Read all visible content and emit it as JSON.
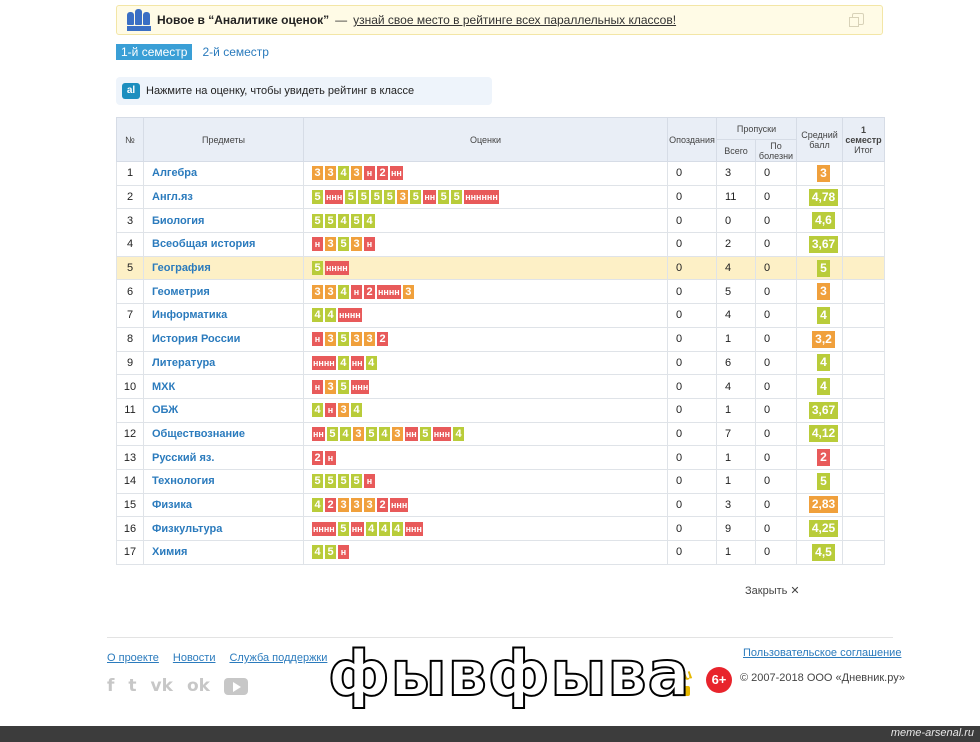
{
  "banner": {
    "title": "Новое в “Аналитике оценок”",
    "dash": "—",
    "link": "узнай свое место в рейтинге всех параллельных классов!"
  },
  "tabs": [
    "1-й семестр",
    "2-й семестр"
  ],
  "hint": {
    "badge": "al",
    "text": "Нажмите на оценку, чтобы увидеть рейтинг в классе"
  },
  "table": {
    "headers": {
      "num": "№",
      "subject": "Предметы",
      "grades": "Оценки",
      "late": "Опоздания",
      "absences": "Пропуски",
      "total": "Всего",
      "sick": "По болезни",
      "avg": "Средний балл",
      "final_top": "1 семестр",
      "final_bottom": "Итог"
    },
    "rows": [
      {
        "n": "1",
        "subject": "Алгебра",
        "marks": [
          "3",
          "3",
          "4",
          "3",
          "н",
          "2",
          "нн"
        ],
        "late": "0",
        "total": "3",
        "sick": "0",
        "avg": "3"
      },
      {
        "n": "2",
        "subject": "Англ.яз",
        "marks": [
          "5",
          "ннн",
          "5",
          "5",
          "5",
          "5",
          "3",
          "5",
          "нн",
          "5",
          "5",
          "нннннн"
        ],
        "late": "0",
        "total": "11",
        "sick": "0",
        "avg": "4,78"
      },
      {
        "n": "3",
        "subject": "Биология",
        "marks": [
          "5",
          "5",
          "4",
          "5",
          "4"
        ],
        "late": "0",
        "total": "0",
        "sick": "0",
        "avg": "4,6"
      },
      {
        "n": "4",
        "subject": "Всеобщая история",
        "marks": [
          "н",
          "3",
          "5",
          "3",
          "н"
        ],
        "late": "0",
        "total": "2",
        "sick": "0",
        "avg": "3,67"
      },
      {
        "n": "5",
        "subject": "География",
        "marks": [
          "5",
          "нннн"
        ],
        "late": "0",
        "total": "4",
        "sick": "0",
        "avg": "5"
      },
      {
        "n": "6",
        "subject": "Геометрия",
        "marks": [
          "3",
          "3",
          "4",
          "н",
          "2",
          "нннн",
          "3"
        ],
        "late": "0",
        "total": "5",
        "sick": "0",
        "avg": "3"
      },
      {
        "n": "7",
        "subject": "Информатика",
        "marks": [
          "4",
          "4",
          "нннн"
        ],
        "late": "0",
        "total": "4",
        "sick": "0",
        "avg": "4"
      },
      {
        "n": "8",
        "subject": "История России",
        "marks": [
          "н",
          "3",
          "5",
          "3",
          "3",
          "2"
        ],
        "late": "0",
        "total": "1",
        "sick": "0",
        "avg": "3,2"
      },
      {
        "n": "9",
        "subject": "Литература",
        "marks": [
          "нннн",
          "4",
          "нн",
          "4"
        ],
        "late": "0",
        "total": "6",
        "sick": "0",
        "avg": "4"
      },
      {
        "n": "10",
        "subject": "МХК",
        "marks": [
          "н",
          "3",
          "5",
          "ннн"
        ],
        "late": "0",
        "total": "4",
        "sick": "0",
        "avg": "4"
      },
      {
        "n": "11",
        "subject": "ОБЖ",
        "marks": [
          "4",
          "н",
          "3",
          "4"
        ],
        "late": "0",
        "total": "1",
        "sick": "0",
        "avg": "3,67"
      },
      {
        "n": "12",
        "subject": "Обществознание",
        "marks": [
          "нн",
          "5",
          "4",
          "3",
          "5",
          "4",
          "3",
          "нн",
          "5",
          "ннн",
          "4"
        ],
        "late": "0",
        "total": "7",
        "sick": "0",
        "avg": "4,12"
      },
      {
        "n": "13",
        "subject": "Русский яз.",
        "marks": [
          "2",
          "н"
        ],
        "late": "0",
        "total": "1",
        "sick": "0",
        "avg": "2"
      },
      {
        "n": "14",
        "subject": "Технология",
        "marks": [
          "5",
          "5",
          "5",
          "5",
          "н"
        ],
        "late": "0",
        "total": "1",
        "sick": "0",
        "avg": "5"
      },
      {
        "n": "15",
        "subject": "Физика",
        "marks": [
          "4",
          "2",
          "3",
          "3",
          "3",
          "2",
          "ннн"
        ],
        "late": "0",
        "total": "3",
        "sick": "0",
        "avg": "2,83"
      },
      {
        "n": "16",
        "subject": "Физкультура",
        "marks": [
          "нннн",
          "5",
          "нн",
          "4",
          "4",
          "4",
          "ннн"
        ],
        "late": "0",
        "total": "9",
        "sick": "0",
        "avg": "4,25"
      },
      {
        "n": "17",
        "subject": "Химия",
        "marks": [
          "4",
          "5",
          "н"
        ],
        "late": "0",
        "total": "1",
        "sick": "0",
        "avg": "4,5"
      }
    ]
  },
  "close_label": "Закрыть ✕",
  "footer": {
    "links": [
      "О проекте",
      "Новости",
      "Служба поддержки"
    ],
    "agreement": "Пользовательское соглашение",
    "age": "6+",
    "copyright": "© 2007-2018 ООО «Дневник.ру»"
  },
  "meme_text": "фывфыва",
  "watermark": "meme-arsenal.ru",
  "colors": {
    "accent": "#2b7bbd",
    "grade_good": "#b9cc3a",
    "grade_mid": "#f0a03c",
    "grade_bad": "#e85a5a",
    "highlight_row": "#fdf0c6"
  }
}
